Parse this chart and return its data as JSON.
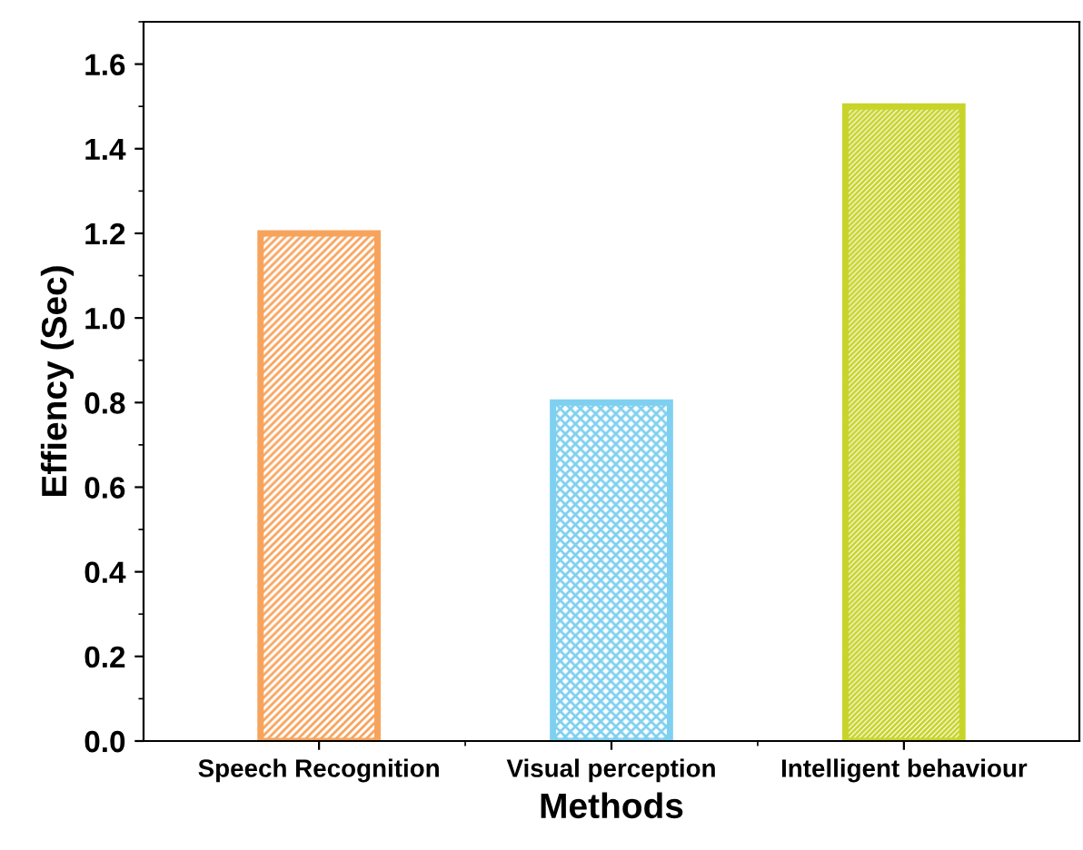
{
  "chart_data": {
    "type": "bar",
    "xlabel": "Methods",
    "ylabel": "Effiency (Sec)",
    "categories": [
      "Speech Recognition",
      "Visual perception",
      "Intelligent behaviour"
    ],
    "values": [
      1.2,
      0.8,
      1.5
    ],
    "colors": [
      "#f7a35c",
      "#7fd0f0",
      "#c8d42a"
    ],
    "ylim": [
      0,
      1.7
    ],
    "yticks": [
      {
        "value": 0,
        "label": "0.0"
      },
      0.2,
      0.4,
      0.6,
      0.8,
      {
        "value": 1,
        "label": "1.0"
      },
      1.2,
      1.4,
      1.6
    ],
    "grid": false
  }
}
